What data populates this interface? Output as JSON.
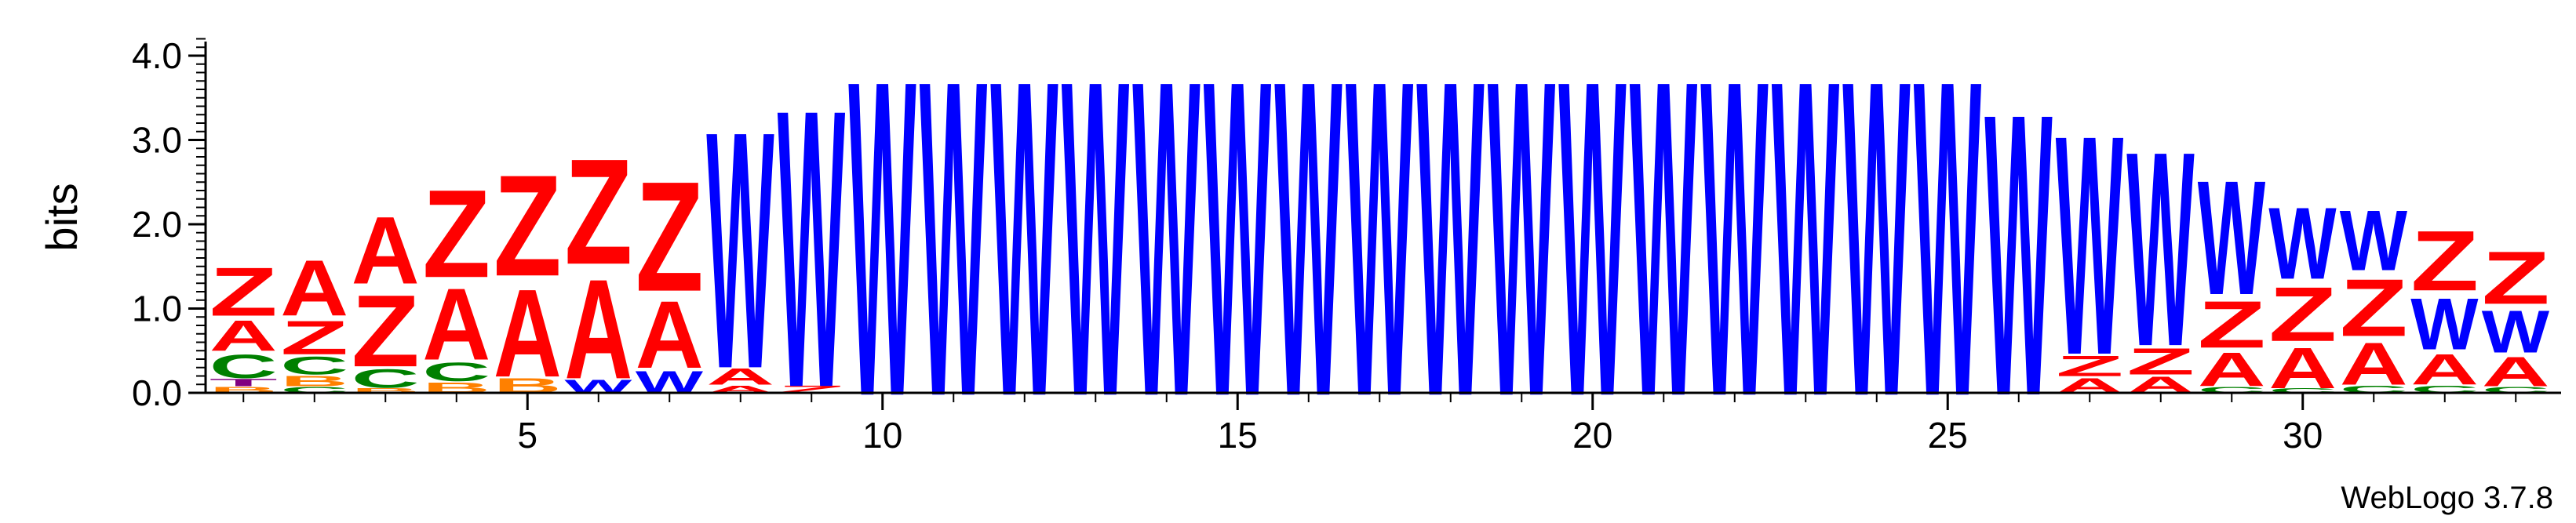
{
  "chart_data": {
    "type": "sequence-logo",
    "ylabel": "bits",
    "ylim": [
      0,
      4.32
    ],
    "yticks": [
      "0.0",
      "1.0",
      "2.0",
      "3.0",
      "4.0"
    ],
    "xticks": [
      5,
      10,
      15,
      20,
      25,
      30
    ],
    "credit": "WebLogo 3.7.8",
    "colors": {
      "Z": "#ff0000",
      "A": "#ff0000",
      "W": "#0000ff",
      "C": "#008000",
      "B": "#ff8000",
      "T": "#800080"
    },
    "positions": [
      {
        "pos": 1,
        "stack": [
          [
            "B",
            0.08
          ],
          [
            "T",
            0.1
          ],
          [
            "C",
            0.32
          ],
          [
            "A",
            0.42
          ],
          [
            "Z",
            0.66
          ]
        ]
      },
      {
        "pos": 2,
        "stack": [
          [
            "C",
            0.08
          ],
          [
            "B",
            0.14
          ],
          [
            "C",
            0.24
          ],
          [
            "Z",
            0.46
          ],
          [
            "A",
            0.76
          ]
        ]
      },
      {
        "pos": 3,
        "stack": [
          [
            "B",
            0.06
          ],
          [
            "C",
            0.26
          ],
          [
            "Z",
            0.98
          ],
          [
            "A",
            0.92
          ]
        ]
      },
      {
        "pos": 4,
        "stack": [
          [
            "B",
            0.14
          ],
          [
            "C",
            0.26
          ],
          [
            "A",
            0.98
          ],
          [
            "Z",
            1.2
          ]
        ]
      },
      {
        "pos": 5,
        "stack": [
          [
            "B",
            0.2
          ],
          [
            "A",
            1.2
          ],
          [
            "Z",
            1.38
          ]
        ]
      },
      {
        "pos": 6,
        "stack": [
          [
            "W",
            0.18
          ],
          [
            "A",
            1.36
          ],
          [
            "Z",
            1.44
          ]
        ]
      },
      {
        "pos": 7,
        "stack": [
          [
            "W",
            0.3
          ],
          [
            "A",
            0.92
          ],
          [
            "Z",
            1.5
          ]
        ]
      },
      {
        "pos": 8,
        "stack": [
          [
            "A",
            0.1
          ],
          [
            "A",
            0.22
          ],
          [
            "W",
            3.24
          ]
        ]
      },
      {
        "pos": 9,
        "stack": [
          [
            "Z",
            0.1
          ],
          [
            "W",
            3.8
          ]
        ]
      },
      {
        "pos": 10,
        "stack": [
          [
            "W",
            4.32
          ]
        ]
      },
      {
        "pos": 11,
        "stack": [
          [
            "W",
            4.32
          ]
        ]
      },
      {
        "pos": 12,
        "stack": [
          [
            "W",
            4.32
          ]
        ]
      },
      {
        "pos": 13,
        "stack": [
          [
            "W",
            4.32
          ]
        ]
      },
      {
        "pos": 14,
        "stack": [
          [
            "W",
            4.32
          ]
        ]
      },
      {
        "pos": 15,
        "stack": [
          [
            "W",
            4.32
          ]
        ]
      },
      {
        "pos": 16,
        "stack": [
          [
            "W",
            4.32
          ]
        ]
      },
      {
        "pos": 17,
        "stack": [
          [
            "W",
            4.32
          ]
        ]
      },
      {
        "pos": 18,
        "stack": [
          [
            "W",
            4.32
          ]
        ]
      },
      {
        "pos": 19,
        "stack": [
          [
            "W",
            4.32
          ]
        ]
      },
      {
        "pos": 20,
        "stack": [
          [
            "W",
            4.32
          ]
        ]
      },
      {
        "pos": 21,
        "stack": [
          [
            "W",
            4.32
          ]
        ]
      },
      {
        "pos": 22,
        "stack": [
          [
            "W",
            4.32
          ]
        ]
      },
      {
        "pos": 23,
        "stack": [
          [
            "W",
            4.32
          ]
        ]
      },
      {
        "pos": 24,
        "stack": [
          [
            "W",
            4.32
          ]
        ]
      },
      {
        "pos": 25,
        "stack": [
          [
            "W",
            4.32
          ]
        ]
      },
      {
        "pos": 26,
        "stack": [
          [
            "W",
            3.86
          ]
        ]
      },
      {
        "pos": 27,
        "stack": [
          [
            "A",
            0.2
          ],
          [
            "Z",
            0.28
          ],
          [
            "W",
            3.0
          ]
        ]
      },
      {
        "pos": 28,
        "stack": [
          [
            "A",
            0.22
          ],
          [
            "Z",
            0.36
          ],
          [
            "W",
            2.66
          ]
        ]
      },
      {
        "pos": 29,
        "stack": [
          [
            "C",
            0.08
          ],
          [
            "A",
            0.46
          ],
          [
            "Z",
            0.64
          ],
          [
            "W",
            1.56
          ]
        ]
      },
      {
        "pos": 30,
        "stack": [
          [
            "C",
            0.06
          ],
          [
            "A",
            0.56
          ],
          [
            "Z",
            0.74
          ],
          [
            "W",
            0.98
          ]
        ]
      },
      {
        "pos": 31,
        "stack": [
          [
            "C",
            0.1
          ],
          [
            "A",
            0.58
          ],
          [
            "Z",
            0.78
          ],
          [
            "W",
            0.82
          ]
        ]
      },
      {
        "pos": 32,
        "stack": [
          [
            "C",
            0.1
          ],
          [
            "A",
            0.42
          ],
          [
            "W",
            0.7
          ],
          [
            "Z",
            0.82
          ]
        ]
      },
      {
        "pos": 33,
        "stack": [
          [
            "C",
            0.08
          ],
          [
            "A",
            0.4
          ],
          [
            "W",
            0.58
          ],
          [
            "Z",
            0.72
          ]
        ]
      }
    ]
  }
}
